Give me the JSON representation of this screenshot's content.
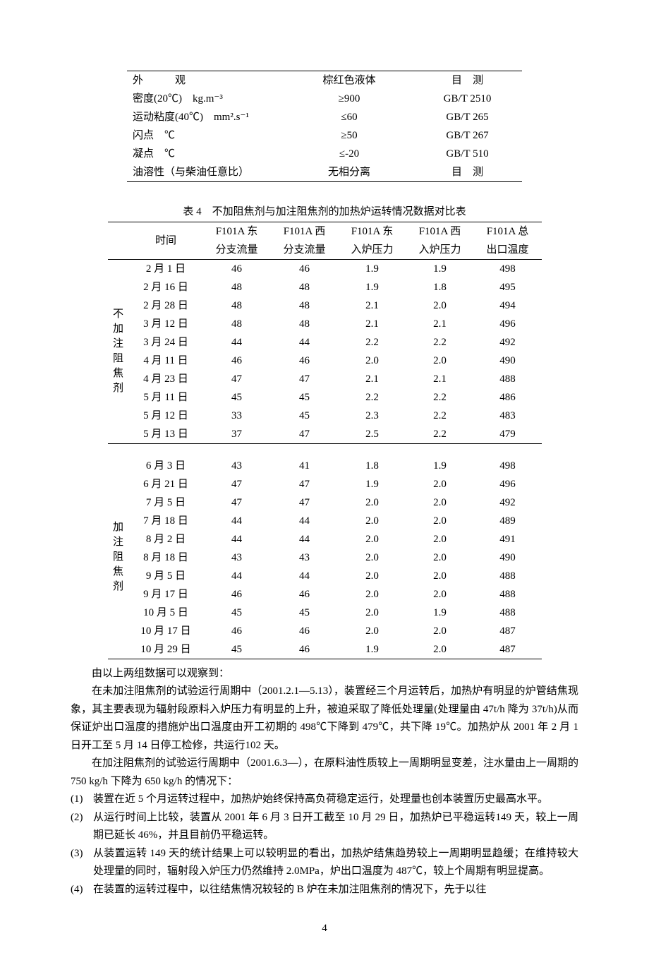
{
  "table1": {
    "rows": [
      {
        "c1": "外　　　观",
        "c2": "棕红色液体",
        "c3": "目　测"
      },
      {
        "c1": "密度(20℃)　kg.m⁻³",
        "c2": "≥900",
        "c3": "GB/T 2510"
      },
      {
        "c1": "运动粘度(40℃)　mm².s⁻¹",
        "c2": "≤60",
        "c3": "GB/T 265"
      },
      {
        "c1": "闪点　℃",
        "c2": "≥50",
        "c3": "GB/T 267"
      },
      {
        "c1": "凝点　℃",
        "c2": "≤-20",
        "c3": "GB/T 510"
      },
      {
        "c1": "油溶性（与柴油任意比）",
        "c2": "无相分离",
        "c3": "目　测"
      }
    ]
  },
  "table4": {
    "caption": "表 4　不加阻焦剂与加注阻焦剂的加热炉运转情况数据对比表",
    "head1": {
      "c1": "时间",
      "c2": "F101A 东",
      "c3": "F101A 西",
      "c4": "F101A 东",
      "c5": "F101A 西",
      "c6": "F101A 总"
    },
    "head2": {
      "c2": "分支流量",
      "c3": "分支流量",
      "c4": "入炉压力",
      "c5": "入炉压力",
      "c6": "出口温度"
    },
    "group1_label": [
      "不",
      "加",
      "注",
      "阻",
      "焦",
      "剂"
    ],
    "group1": [
      {
        "date": "2 月 1 日",
        "v2": "46",
        "v3": "46",
        "v4": "1.9",
        "v5": "1.9",
        "v6": "498"
      },
      {
        "date": "2 月 16 日",
        "v2": "48",
        "v3": "48",
        "v4": "1.9",
        "v5": "1.8",
        "v6": "495"
      },
      {
        "date": "2 月 28 日",
        "v2": "48",
        "v3": "48",
        "v4": "2.1",
        "v5": "2.0",
        "v6": "494"
      },
      {
        "date": "3 月 12 日",
        "v2": "48",
        "v3": "48",
        "v4": "2.1",
        "v5": "2.1",
        "v6": "496"
      },
      {
        "date": "3 月 24 日",
        "v2": "44",
        "v3": "44",
        "v4": "2.2",
        "v5": "2.2",
        "v6": "492"
      },
      {
        "date": "4 月 11 日",
        "v2": "46",
        "v3": "46",
        "v4": "2.0",
        "v5": "2.0",
        "v6": "490"
      },
      {
        "date": "4 月 23 日",
        "v2": "47",
        "v3": "47",
        "v4": "2.1",
        "v5": "2.1",
        "v6": "488"
      },
      {
        "date": "5 月 11 日",
        "v2": "45",
        "v3": "45",
        "v4": "2.2",
        "v5": "2.2",
        "v6": "486"
      },
      {
        "date": "5 月 12 日",
        "v2": "33",
        "v3": "45",
        "v4": "2.3",
        "v5": "2.2",
        "v6": "483"
      },
      {
        "date": "5 月 13 日",
        "v2": "37",
        "v3": "47",
        "v4": "2.5",
        "v5": "2.2",
        "v6": "479"
      }
    ],
    "group2_label": [
      "加",
      "注",
      "阻",
      "焦",
      "剂"
    ],
    "group2": [
      {
        "date": "6 月 3 日",
        "v2": "43",
        "v3": "41",
        "v4": "1.8",
        "v5": "1.9",
        "v6": "498"
      },
      {
        "date": "6 月 21 日",
        "v2": "47",
        "v3": "47",
        "v4": "1.9",
        "v5": "2.0",
        "v6": "496"
      },
      {
        "date": "7 月 5 日",
        "v2": "47",
        "v3": "47",
        "v4": "2.0",
        "v5": "2.0",
        "v6": "492"
      },
      {
        "date": "7 月 18 日",
        "v2": "44",
        "v3": "44",
        "v4": "2.0",
        "v5": "2.0",
        "v6": "489"
      },
      {
        "date": "8 月 2 日",
        "v2": "44",
        "v3": "44",
        "v4": "2.0",
        "v5": "2.0",
        "v6": "491"
      },
      {
        "date": "8 月 18 日",
        "v2": "43",
        "v3": "43",
        "v4": "2.0",
        "v5": "2.0",
        "v6": "490"
      },
      {
        "date": "9 月 5 日",
        "v2": "44",
        "v3": "44",
        "v4": "2.0",
        "v5": "2.0",
        "v6": "488"
      },
      {
        "date": "9 月 17 日",
        "v2": "46",
        "v3": "46",
        "v4": "2.0",
        "v5": "2.0",
        "v6": "488"
      },
      {
        "date": "10 月 5 日",
        "v2": "45",
        "v3": "45",
        "v4": "2.0",
        "v5": "1.9",
        "v6": "488"
      },
      {
        "date": "10 月 17 日",
        "v2": "46",
        "v3": "46",
        "v4": "2.0",
        "v5": "2.0",
        "v6": "487"
      },
      {
        "date": "10 月 29 日",
        "v2": "45",
        "v3": "46",
        "v4": "1.9",
        "v5": "2.0",
        "v6": "487"
      }
    ]
  },
  "paragraphs": {
    "p1": "由以上两组数据可以观察到：",
    "p2": "在未加注阻焦剂的试验运行周期中（2001.2.1—5.13），装置经三个月运转后，加热炉有明显的炉管结焦现象，其主要表现为辐射段原料入炉压力有明显的上升，被迫采取了降低处理量(处理量由 47t/h 降为 37t/h)从而保证炉出口温度的措施炉出口温度由开工初期的 498℃下降到 479℃，共下降 19℃。加热炉从 2001 年 2 月 1 日开工至 5 月 14 日停工检修，共运行102 天。",
    "p3": "在加注阻焦剂的试验运行周期中（2001.6.3—），在原料油性质较上一周期明显变差，注水量由上一周期的 750 kg/h 下降为 650 kg/h 的情况下："
  },
  "list": [
    {
      "num": "(1)",
      "text": "装置在近 5 个月运转过程中，加热炉始终保持高负荷稳定运行，处理量也创本装置历史最高水平。"
    },
    {
      "num": "(2)",
      "text": "从运行时间上比较，装置从 2001 年 6 月 3 日开工截至 10 月 29 日，加热炉已平稳运转149 天，较上一周期已延长 46%，并且目前仍平稳运转。"
    },
    {
      "num": "(3)",
      "text": "从装置运转 149 天的统计结果上可以较明显的看出，加热炉结焦趋势较上一周期明显趋缓；在维持较大处理量的同时，辐射段入炉压力仍然维持 2.0MPa，炉出口温度为 487℃，较上个周期有明显提高。"
    },
    {
      "num": "(4)",
      "text": "在装置的运转过程中，以往结焦情况较轻的 B 炉在未加注阻焦剂的情况下，先于以往"
    }
  ],
  "page_number": "4"
}
